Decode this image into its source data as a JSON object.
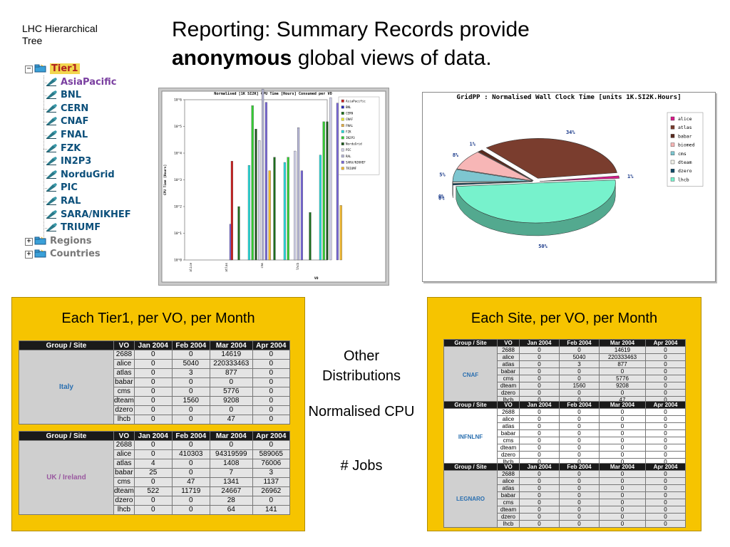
{
  "tree": {
    "title_line1": "LHC Hierarchical",
    "title_line2": "Tree",
    "tier1": "Tier1",
    "sites": [
      "AsiaPacific",
      "BNL",
      "CERN",
      "CNAF",
      "FNAL",
      "FZK",
      "IN2P3",
      "NorduGrid",
      "PIC",
      "RAL",
      "SARA/NIKHEF",
      "TRIUMF"
    ],
    "regions": "Regions",
    "countries": "Countries",
    "expand_minus": "−",
    "expand_plus": "+"
  },
  "headline": {
    "line1": "Reporting: Summary Records provide",
    "line2_bold": "anonymous",
    "line2_rest": " global views of data."
  },
  "chart_data": [
    {
      "type": "bar",
      "title": "Normalised [1K SI2K] CPU Time [Hours] Consumed per VO",
      "xlabel": "VO",
      "ylabel": "CPU Time [Hours]",
      "yscale": "log",
      "ytick_labels": [
        "10^0",
        "10^1",
        "10^2",
        "10^3",
        "10^4",
        "10^5",
        "10^6"
      ],
      "categories": [
        "alice",
        "atlas",
        "cms",
        "lhcb"
      ],
      "legend": [
        "AsiaPacific",
        "BNL",
        "CERN",
        "CNAF",
        "FNAL",
        "FZK",
        "IN2P3",
        "NorduGrid",
        "PIC",
        "RAL",
        "SARA/NIKHEF",
        "TRIUMF"
      ],
      "colors": [
        "#cc2222",
        "#2a2ab8",
        "#1d6e1d",
        "#e8e82a",
        "#e8b24a",
        "#2adada",
        "#33cc33",
        "#1d5a1d",
        "#d0d0e8",
        "#b8b8d8",
        "#7a6ad8",
        "#f0b830"
      ],
      "groups": [
        {
          "category": "alice",
          "bars": [
            {
              "series": 10,
              "value": 22
            }
          ]
        },
        {
          "category": "atlas",
          "bars": [
            {
              "series": 0,
              "value": 5000
            },
            {
              "series": 2,
              "value": 100
            },
            {
              "series": 5,
              "value": 3500
            },
            {
              "series": 6,
              "value": 600000
            },
            {
              "series": 7,
              "value": 80000
            },
            {
              "series": 8,
              "value": 30000
            },
            {
              "series": 9,
              "value": 2500000
            },
            {
              "series": 10,
              "value": 800000
            },
            {
              "series": 11,
              "value": 2200
            }
          ]
        },
        {
          "category": "cms",
          "bars": [
            {
              "series": 2,
              "value": 7000
            },
            {
              "series": 5,
              "value": 4500
            },
            {
              "series": 6,
              "value": 7000
            },
            {
              "series": 8,
              "value": 12000
            },
            {
              "series": 9,
              "value": 90000
            },
            {
              "series": 10,
              "value": 2200
            }
          ]
        },
        {
          "category": "lhcb",
          "bars": [
            {
              "series": 2,
              "value": 60
            },
            {
              "series": 5,
              "value": 8500
            },
            {
              "series": 6,
              "value": 150000
            },
            {
              "series": 7,
              "value": 150000
            },
            {
              "series": 8,
              "value": 1200000
            },
            {
              "series": 10,
              "value": 750000
            },
            {
              "series": 11,
              "value": 110
            }
          ]
        }
      ]
    },
    {
      "type": "pie",
      "title": "GridPP : Normalised Wall Clock Time [units 1K.SI2K.Hours]",
      "labels": [
        "alice",
        "atlas",
        "babar",
        "biomed",
        "cms",
        "dteam",
        "dzero",
        "lhcb"
      ],
      "values": [
        1,
        34,
        1,
        8,
        5,
        0,
        0,
        50
      ],
      "slice_labels": [
        "1%",
        "34%",
        "1%",
        "8%",
        "5%",
        "0%",
        "0%",
        "50%"
      ],
      "colors": [
        "#d81b8a",
        "#7a3d2e",
        "#5a2a1e",
        "#f7b6b6",
        "#7ec6d0",
        "#f0f0e8",
        "#124a66",
        "#77f2cc"
      ],
      "legend_placement": "right"
    }
  ],
  "left_panel": {
    "title": "Each Tier1, per VO, per Month",
    "headers": [
      "Group / Site",
      "VO",
      "Jan 2004",
      "Feb 2004",
      "Mar 2004",
      "Apr 2004"
    ],
    "tables": [
      {
        "site": "Italy",
        "rows": [
          [
            "2688",
            "0",
            "0",
            "14619",
            "0"
          ],
          [
            "alice",
            "0",
            "5040",
            "220333463",
            "0"
          ],
          [
            "atlas",
            "0",
            "3",
            "877",
            "0"
          ],
          [
            "babar",
            "0",
            "0",
            "0",
            "0"
          ],
          [
            "cms",
            "0",
            "0",
            "5776",
            "0"
          ],
          [
            "dteam",
            "0",
            "1560",
            "9208",
            "0"
          ],
          [
            "dzero",
            "0",
            "0",
            "0",
            "0"
          ],
          [
            "lhcb",
            "0",
            "0",
            "47",
            "0"
          ]
        ]
      },
      {
        "site": "UK / Ireland",
        "rows": [
          [
            "2688",
            "0",
            "0",
            "0",
            "0"
          ],
          [
            "alice",
            "0",
            "410303",
            "94319599",
            "589065"
          ],
          [
            "atlas",
            "4",
            "0",
            "1408",
            "76006"
          ],
          [
            "babar",
            "25",
            "0",
            "7",
            "3"
          ],
          [
            "cms",
            "0",
            "47",
            "1341",
            "1137"
          ],
          [
            "dteam",
            "522",
            "11719",
            "24667",
            "26962"
          ],
          [
            "dzero",
            "0",
            "0",
            "28",
            "0"
          ],
          [
            "lhcb",
            "0",
            "0",
            "64",
            "141"
          ]
        ]
      }
    ]
  },
  "middle": {
    "items": [
      "Other Distributions",
      "Normalised CPU",
      "# Jobs"
    ]
  },
  "right_panel": {
    "title": "Each Site, per VO, per Month",
    "headers": [
      "Group / Site",
      "VO",
      "Jan 2004",
      "Feb 2004",
      "Mar 2004",
      "Apr 2004"
    ],
    "tables": [
      {
        "site": "CNAF",
        "rows": [
          [
            "2688",
            "0",
            "0",
            "14619",
            "0"
          ],
          [
            "alice",
            "0",
            "5040",
            "220333463",
            "0"
          ],
          [
            "atlas",
            "0",
            "3",
            "877",
            "0"
          ],
          [
            "babar",
            "0",
            "0",
            "0",
            "0"
          ],
          [
            "cms",
            "0",
            "0",
            "5776",
            "0"
          ],
          [
            "dteam",
            "0",
            "1560",
            "9208",
            "0"
          ],
          [
            "dzero",
            "0",
            "0",
            "0",
            "0"
          ],
          [
            "lhcb",
            "0",
            "0",
            "47",
            "0"
          ]
        ]
      },
      {
        "site": "INFNLNF",
        "rows": [
          [
            "2688",
            "0",
            "0",
            "0",
            "0"
          ],
          [
            "alice",
            "0",
            "0",
            "0",
            "0"
          ],
          [
            "atlas",
            "0",
            "0",
            "0",
            "0"
          ],
          [
            "babar",
            "0",
            "0",
            "0",
            "0"
          ],
          [
            "cms",
            "0",
            "0",
            "0",
            "0"
          ],
          [
            "dteam",
            "0",
            "0",
            "0",
            "0"
          ],
          [
            "dzero",
            "0",
            "0",
            "0",
            "0"
          ],
          [
            "lhcb",
            "0",
            "0",
            "0",
            "0"
          ]
        ]
      },
      {
        "site": "LEGNARO",
        "rows": [
          [
            "2688",
            "0",
            "0",
            "0",
            "0"
          ],
          [
            "alice",
            "0",
            "0",
            "0",
            "0"
          ],
          [
            "atlas",
            "0",
            "0",
            "0",
            "0"
          ],
          [
            "babar",
            "0",
            "0",
            "0",
            "0"
          ],
          [
            "cms",
            "0",
            "0",
            "0",
            "0"
          ],
          [
            "dteam",
            "0",
            "0",
            "0",
            "0"
          ],
          [
            "dzero",
            "0",
            "0",
            "0",
            "0"
          ],
          [
            "lhcb",
            "0",
            "0",
            "0",
            "0"
          ]
        ]
      }
    ]
  }
}
